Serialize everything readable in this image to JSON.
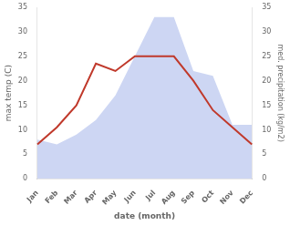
{
  "chart_data": {
    "type": "line",
    "xlabel": "date (month)",
    "ylabel": "max temp (C)",
    "y2label": "med. precipitation (kg/m2)",
    "categories": [
      "Jan",
      "Feb",
      "Mar",
      "Apr",
      "May",
      "Jun",
      "Jul",
      "Aug",
      "Sep",
      "Oct",
      "Nov",
      "Dec"
    ],
    "series": [
      {
        "type": "area",
        "axis": "y2",
        "color": "#b8c4ee",
        "values": [
          8,
          7,
          9,
          12,
          17,
          25,
          33,
          33,
          22,
          21,
          11,
          11
        ]
      },
      {
        "type": "line",
        "color": "#c0392b",
        "values": [
          7,
          10.5,
          15,
          23.5,
          22,
          25,
          25,
          25,
          20,
          14,
          10.5,
          7
        ]
      }
    ],
    "ylim": [
      0,
      35
    ],
    "yticks": [
      0,
      5,
      10,
      15,
      20,
      25,
      30,
      35
    ],
    "y2lim": [
      0,
      35
    ],
    "y2ticks": [
      0,
      5,
      10,
      15,
      20,
      25,
      30,
      35
    ],
    "grid": false
  }
}
